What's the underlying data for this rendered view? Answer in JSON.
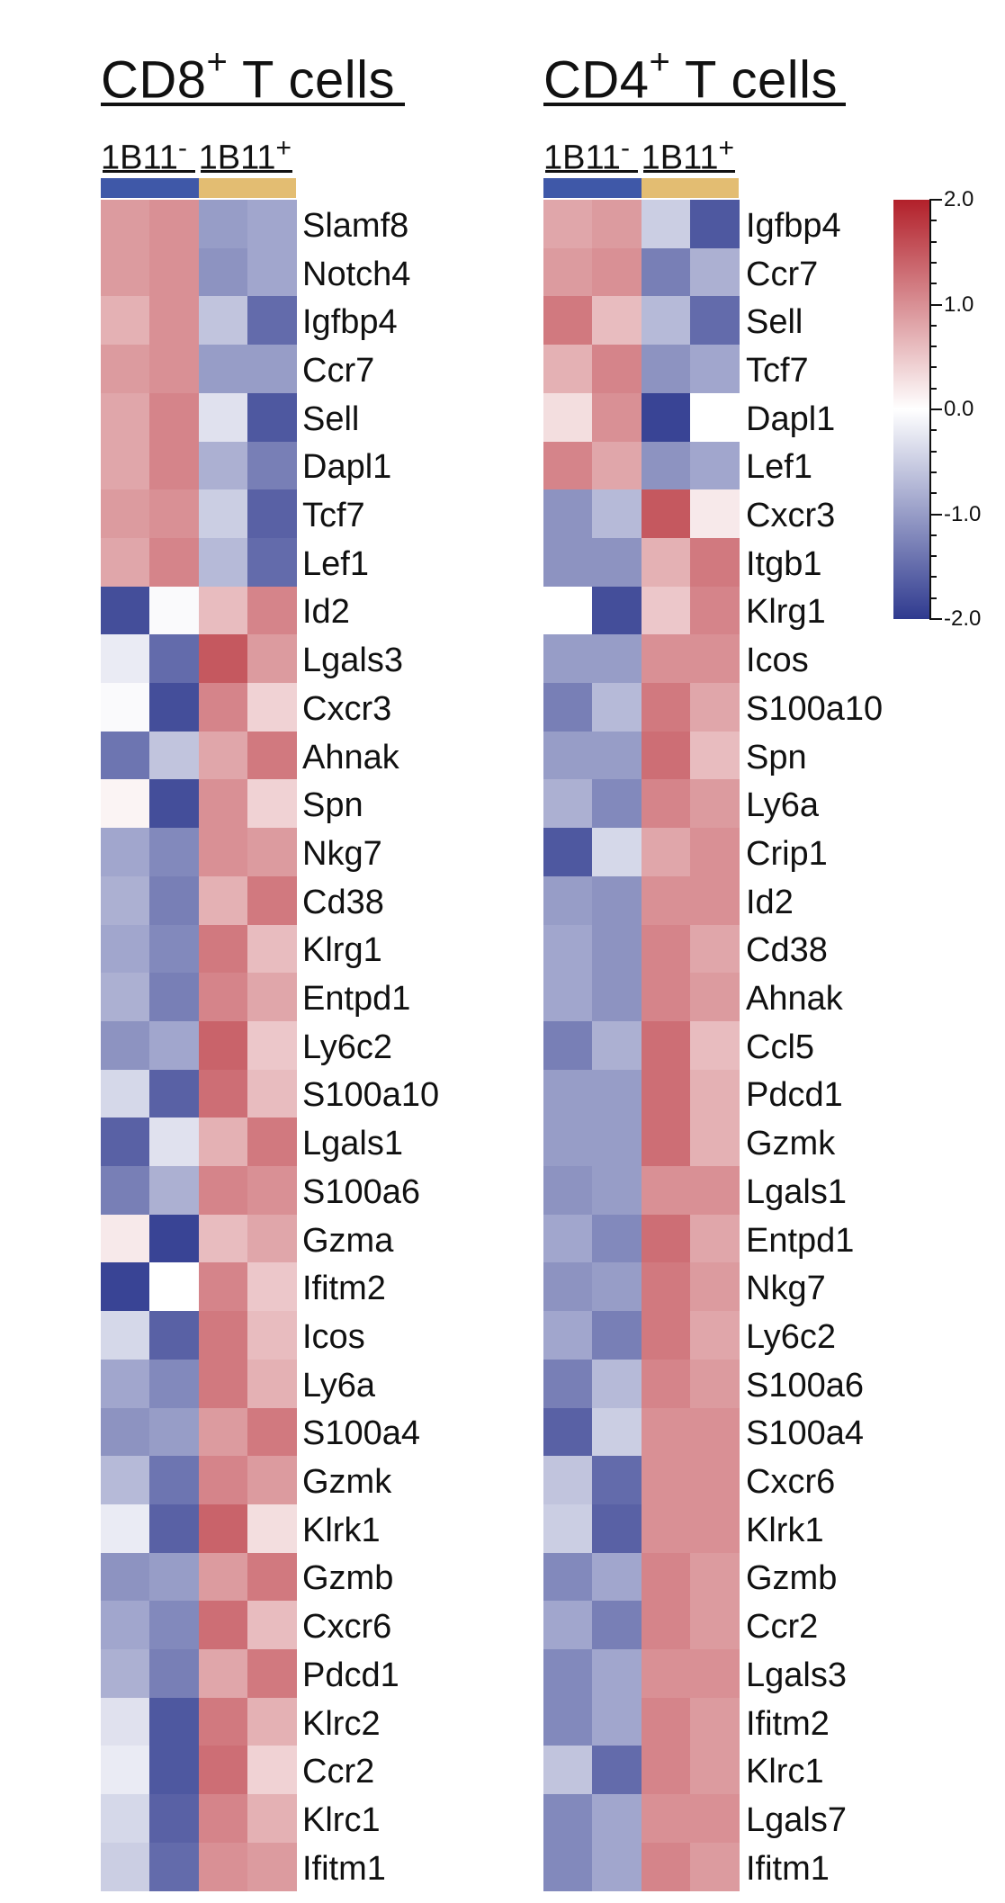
{
  "chart_data": [
    {
      "type": "heatmap",
      "title": "CD8",
      "title_sup": "+",
      "title_suffix": " T cells",
      "groups": [
        {
          "label": "1B11",
          "sup": "-",
          "color": "#3f58a8",
          "columns": 2
        },
        {
          "label": "1B11",
          "sup": "+",
          "color": "#e3bd72",
          "columns": 2
        }
      ],
      "rows": [
        "Slamf8",
        "Notch4",
        "Igfbp4",
        "Ccr7",
        "Sell",
        "Dapl1",
        "Tcf7",
        "Lef1",
        "Id2",
        "Lgals3",
        "Cxcr3",
        "Ahnak",
        "Spn",
        "Nkg7",
        "Cd38",
        "Klrg1",
        "Entpd1",
        "Ly6c2",
        "S100a10",
        "Lgals1",
        "S100a6",
        "Gzma",
        "Ifitm2",
        "Icos",
        "Ly6a",
        "S100a4",
        "Gzmk",
        "Klrk1",
        "Gzmb",
        "Cxcr6",
        "Pdcd1",
        "Klrc2",
        "Ccr2",
        "Klrc1",
        "Ifitm1"
      ],
      "values": [
        [
          0.9,
          1.0,
          -1.0,
          -0.9
        ],
        [
          0.9,
          1.0,
          -1.1,
          -0.9
        ],
        [
          0.7,
          1.0,
          -0.6,
          -1.5
        ],
        [
          0.9,
          1.0,
          -1.0,
          -1.0
        ],
        [
          0.8,
          1.1,
          -0.3,
          -1.7
        ],
        [
          0.8,
          1.1,
          -0.8,
          -1.3
        ],
        [
          0.9,
          1.0,
          -0.5,
          -1.6
        ],
        [
          0.8,
          1.1,
          -0.7,
          -1.5
        ],
        [
          -1.8,
          -0.05,
          0.6,
          1.1
        ],
        [
          -0.2,
          -1.5,
          1.5,
          0.9
        ],
        [
          -0.05,
          -1.8,
          1.1,
          0.4
        ],
        [
          -1.4,
          -0.6,
          0.8,
          1.2
        ],
        [
          0.1,
          -1.8,
          1.0,
          0.4
        ],
        [
          -0.9,
          -1.2,
          1.0,
          0.9
        ],
        [
          -0.8,
          -1.3,
          0.7,
          1.2
        ],
        [
          -0.9,
          -1.2,
          1.2,
          0.6
        ],
        [
          -0.8,
          -1.3,
          1.1,
          0.8
        ],
        [
          -1.1,
          -0.9,
          1.4,
          0.5
        ],
        [
          -0.4,
          -1.6,
          1.3,
          0.6
        ],
        [
          -1.6,
          -0.3,
          0.7,
          1.2
        ],
        [
          -1.3,
          -0.8,
          1.1,
          1.0
        ],
        [
          0.2,
          -1.9,
          0.6,
          0.8
        ],
        [
          -1.9,
          0.0,
          1.1,
          0.5
        ],
        [
          -0.4,
          -1.6,
          1.2,
          0.6
        ],
        [
          -0.9,
          -1.2,
          1.2,
          0.7
        ],
        [
          -1.1,
          -1.0,
          0.9,
          1.2
        ],
        [
          -0.7,
          -1.4,
          1.1,
          0.9
        ],
        [
          -0.2,
          -1.6,
          1.4,
          0.3
        ],
        [
          -1.1,
          -1.0,
          0.9,
          1.2
        ],
        [
          -0.9,
          -1.2,
          1.3,
          0.6
        ],
        [
          -0.8,
          -1.3,
          0.8,
          1.2
        ],
        [
          -0.3,
          -1.7,
          1.2,
          0.7
        ],
        [
          -0.2,
          -1.7,
          1.3,
          0.4
        ],
        [
          -0.4,
          -1.6,
          1.1,
          0.7
        ],
        [
          -0.5,
          -1.5,
          1.0,
          0.9
        ]
      ]
    },
    {
      "type": "heatmap",
      "title": "CD4",
      "title_sup": "+",
      "title_suffix": " T cells",
      "groups": [
        {
          "label": "1B11",
          "sup": "-",
          "color": "#3f58a8",
          "columns": 2
        },
        {
          "label": "1B11",
          "sup": "+",
          "color": "#e3bd72",
          "columns": 2
        }
      ],
      "rows": [
        "Igfbp4",
        "Ccr7",
        "Sell",
        "Tcf7",
        "Dapl1",
        "Lef1",
        "Cxcr3",
        "Itgb1",
        "Klrg1",
        "Icos",
        "S100a10",
        "Spn",
        "Ly6a",
        "Crip1",
        "Id2",
        "Cd38",
        "Ahnak",
        "Ccl5",
        "Pdcd1",
        "Gzmk",
        "Lgals1",
        "Entpd1",
        "Nkg7",
        "Ly6c2",
        "S100a6",
        "S100a4",
        "Cxcr6",
        "Klrk1",
        "Gzmb",
        "Ccr2",
        "Lgals3",
        "Ifitm2",
        "Klrc1",
        "Lgals7",
        "Ifitm1"
      ],
      "values": [
        [
          0.8,
          0.9,
          -0.5,
          -1.7
        ],
        [
          0.9,
          1.0,
          -1.3,
          -0.8
        ],
        [
          1.2,
          0.6,
          -0.7,
          -1.5
        ],
        [
          0.7,
          1.1,
          -1.1,
          -0.9
        ],
        [
          0.3,
          1.0,
          -1.9,
          0.0
        ],
        [
          1.1,
          0.8,
          -1.1,
          -0.9
        ],
        [
          -1.1,
          -0.7,
          1.5,
          0.2
        ],
        [
          -1.1,
          -1.1,
          0.7,
          1.2
        ],
        [
          0.0,
          -1.8,
          0.5,
          1.1
        ],
        [
          -1.0,
          -1.0,
          1.0,
          1.0
        ],
        [
          -1.3,
          -0.7,
          1.2,
          0.8
        ],
        [
          -1.0,
          -1.0,
          1.3,
          0.6
        ],
        [
          -0.8,
          -1.2,
          1.1,
          0.9
        ],
        [
          -1.7,
          -0.4,
          0.8,
          1.0
        ],
        [
          -1.0,
          -1.1,
          1.0,
          1.0
        ],
        [
          -0.9,
          -1.1,
          1.1,
          0.8
        ],
        [
          -0.9,
          -1.1,
          1.1,
          0.9
        ],
        [
          -1.3,
          -0.8,
          1.3,
          0.6
        ],
        [
          -1.0,
          -1.0,
          1.3,
          0.7
        ],
        [
          -1.0,
          -1.0,
          1.3,
          0.7
        ],
        [
          -1.1,
          -1.0,
          1.0,
          1.0
        ],
        [
          -0.9,
          -1.2,
          1.3,
          0.8
        ],
        [
          -1.1,
          -1.0,
          1.2,
          0.9
        ],
        [
          -0.9,
          -1.3,
          1.2,
          0.8
        ],
        [
          -1.3,
          -0.7,
          1.1,
          0.9
        ],
        [
          -1.6,
          -0.5,
          1.0,
          1.0
        ],
        [
          -0.6,
          -1.5,
          1.0,
          1.0
        ],
        [
          -0.5,
          -1.6,
          1.0,
          1.0
        ],
        [
          -1.2,
          -0.9,
          1.1,
          0.9
        ],
        [
          -0.9,
          -1.3,
          1.1,
          0.9
        ],
        [
          -1.2,
          -0.9,
          1.0,
          1.0
        ],
        [
          -1.2,
          -0.9,
          1.1,
          0.9
        ],
        [
          -0.6,
          -1.5,
          1.1,
          0.9
        ],
        [
          -1.2,
          -0.9,
          1.0,
          1.0
        ],
        [
          -1.2,
          -0.9,
          1.1,
          0.9
        ]
      ]
    }
  ],
  "legend": {
    "min": -2.0,
    "max": 2.0,
    "ticks": [
      "2.0",
      "1.0",
      "0.0",
      "-1.0",
      "-2.0"
    ],
    "tick_values": [
      2.0,
      1.0,
      0.0,
      -1.0,
      -2.0
    ],
    "colors": {
      "low": "#2f3a8f",
      "mid": "#ffffff",
      "high": "#b2202a"
    }
  }
}
